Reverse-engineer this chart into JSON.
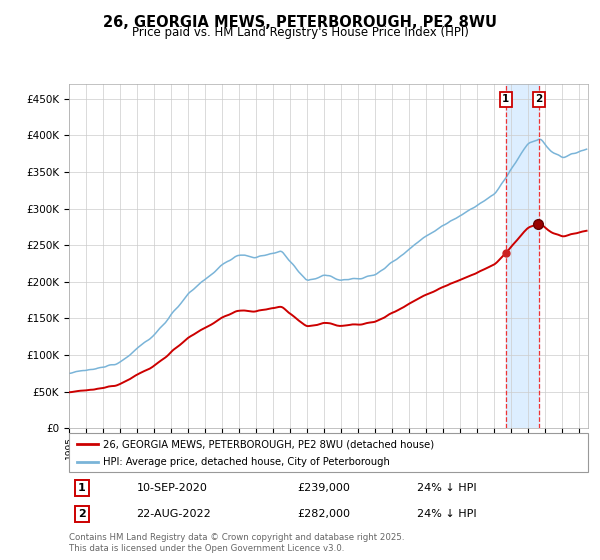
{
  "title": "26, GEORGIA MEWS, PETERBOROUGH, PE2 8WU",
  "subtitle": "Price paid vs. HM Land Registry's House Price Index (HPI)",
  "legend_line1": "26, GEORGIA MEWS, PETERBOROUGH, PE2 8WU (detached house)",
  "legend_line2": "HPI: Average price, detached house, City of Peterborough",
  "footnote": "Contains HM Land Registry data © Crown copyright and database right 2025.\nThis data is licensed under the Open Government Licence v3.0.",
  "transaction1_label": "1",
  "transaction1_date": "10-SEP-2020",
  "transaction1_price": "£239,000",
  "transaction1_hpi": "24% ↓ HPI",
  "transaction2_label": "2",
  "transaction2_date": "22-AUG-2022",
  "transaction2_price": "£282,000",
  "transaction2_hpi": "24% ↓ HPI",
  "hpi_color": "#7ab4d8",
  "price_color": "#cc0000",
  "background_color": "#ffffff",
  "grid_color": "#cccccc",
  "highlight_color": "#ddeeff",
  "vline_color": "#ee3333",
  "ylim": [
    0,
    470000
  ],
  "yticks": [
    0,
    50000,
    100000,
    150000,
    200000,
    250000,
    300000,
    350000,
    400000,
    450000
  ],
  "year_start": 1995,
  "year_end": 2025,
  "transaction1_year": 2020.67,
  "transaction2_year": 2022.62,
  "t1_price": 239000,
  "t2_price": 282000
}
